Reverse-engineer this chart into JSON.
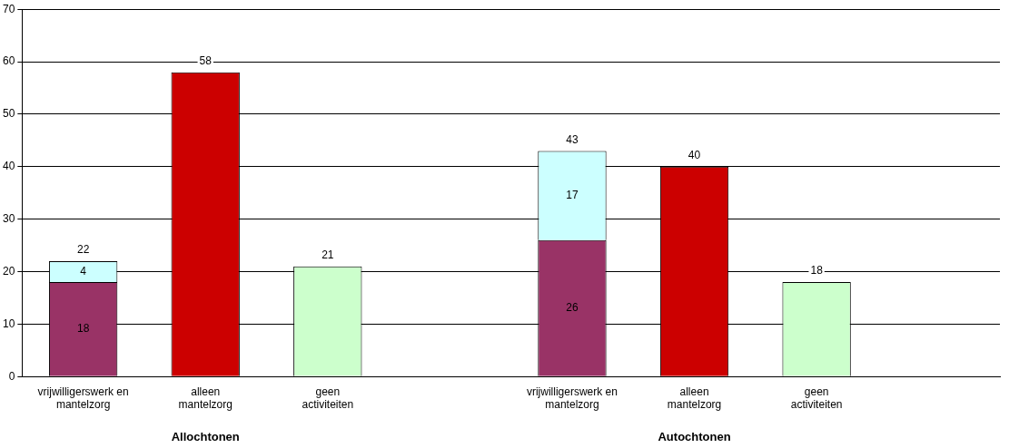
{
  "chart_data": {
    "type": "bar",
    "stacked": true,
    "categories": [
      "vrijwilligerswerk en mantelzorg",
      "alleen mantelzorg",
      "geen activiteiten",
      null,
      "vrijwilligerswerk en mantelzorg",
      "alleen mantelzorg",
      "geen activiteiten",
      null
    ],
    "series": [
      {
        "color": "#993366",
        "values": [
          18,
          null,
          null,
          null,
          26,
          null,
          null,
          null
        ],
        "value_labels": [
          "18",
          null,
          null,
          null,
          "26",
          null,
          null,
          null
        ]
      },
      {
        "color": "#ccffff",
        "values": [
          4,
          null,
          null,
          null,
          17,
          null,
          null,
          null
        ],
        "value_labels": [
          "4",
          null,
          null,
          null,
          "17",
          null,
          null,
          null
        ]
      },
      {
        "color": "#cc0000",
        "values": [
          null,
          58,
          null,
          null,
          null,
          40,
          null,
          null
        ]
      },
      {
        "color": "#ccffcc",
        "values": [
          null,
          null,
          21,
          null,
          null,
          null,
          18,
          null
        ]
      }
    ],
    "totals": [
      "22",
      "58",
      "21",
      null,
      "43",
      "40",
      "18",
      null
    ],
    "annotations": [
      "Allochtonen",
      "Autochtonen"
    ],
    "ylim": [
      0,
      70
    ],
    "yticks": [
      0,
      10,
      20,
      30,
      40,
      50,
      60,
      70
    ],
    "grid": "y",
    "legend": false
  }
}
